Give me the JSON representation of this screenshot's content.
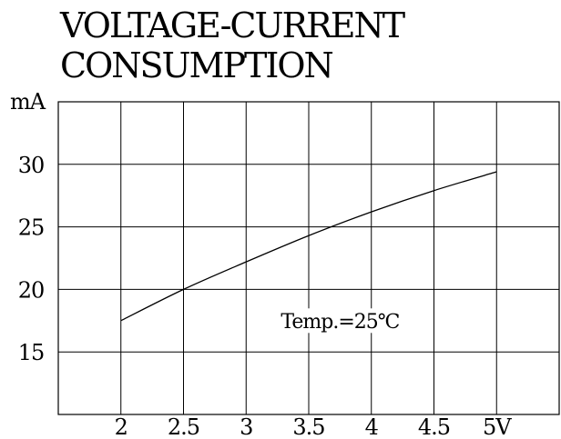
{
  "chart_data": {
    "type": "line",
    "title_lines": [
      "VOLTAGE-CURRENT",
      "CONSUMPTION"
    ],
    "x_unit": "V",
    "y_unit": "mA",
    "x_ticks": [
      2,
      2.5,
      3,
      3.5,
      4,
      4.5,
      5
    ],
    "x_tick_labels": [
      "2",
      "2.5",
      "3",
      "3.5",
      "4",
      "4.5",
      "5V"
    ],
    "y_ticks": [
      15,
      20,
      25,
      30
    ],
    "y_tick_labels": [
      "15",
      "20",
      "25",
      "30"
    ],
    "xlim": [
      1.5,
      5.5
    ],
    "ylim": [
      10,
      35
    ],
    "grid": true,
    "annotation": {
      "text": "Temp.=25℃",
      "x": 3.75,
      "y": 17.5
    },
    "series": [
      {
        "x": [
          2,
          2.5,
          3,
          3.5,
          4,
          4.5,
          5
        ],
        "y": [
          17.5,
          20,
          22.2,
          24.3,
          26.2,
          27.9,
          29.4
        ]
      }
    ],
    "line_color": "#000000"
  }
}
